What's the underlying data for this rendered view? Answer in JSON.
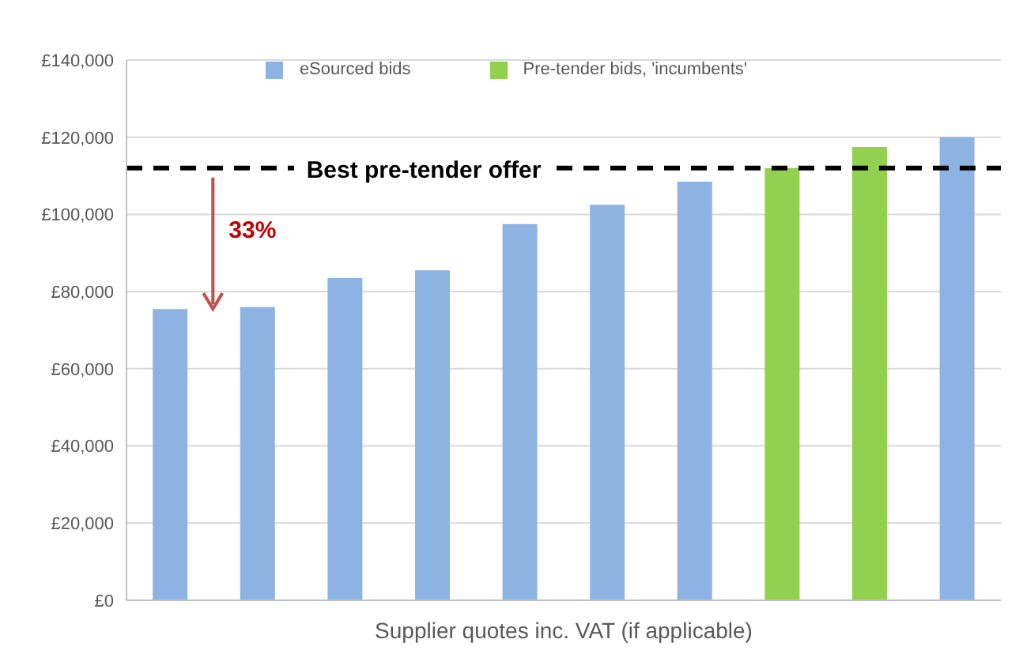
{
  "chart_data": {
    "type": "bar",
    "xlabel": "Supplier quotes inc. VAT (if applicable)",
    "categories": [
      null,
      null,
      null,
      null,
      null,
      null,
      null,
      null,
      null,
      null
    ],
    "stacked": true,
    "series": [
      {
        "name": "eSourced bids",
        "color": "#8db3e2",
        "values": [
          75500,
          76000,
          83500,
          85500,
          97500,
          102500,
          108500,
          null,
          null,
          120000
        ]
      },
      {
        "name": "Pre-tender bids, 'incumbents'",
        "color": "#92d050",
        "values": [
          null,
          null,
          null,
          null,
          null,
          null,
          null,
          112000,
          117500,
          null
        ]
      }
    ],
    "ylim": [
      0,
      140000
    ],
    "yticks": [
      {
        "value": 0,
        "label": "£0"
      },
      {
        "value": 20000,
        "label": "£20,000"
      },
      {
        "value": 40000,
        "label": "£40,000"
      },
      {
        "value": 60000,
        "label": "£60,000"
      },
      {
        "value": 80000,
        "label": "£80,000"
      },
      {
        "value": 100000,
        "label": "£100,000"
      },
      {
        "value": 120000,
        "label": "£120,000"
      },
      {
        "value": 140000,
        "label": "£140,000"
      }
    ],
    "grid": "y",
    "legend": "top",
    "ref_lines": [
      {
        "axis": "y",
        "value": 112000,
        "label": "Best pre-tender offer",
        "color": "#000000",
        "line_style": "dashed"
      }
    ],
    "annotations": [
      "33%"
    ]
  }
}
